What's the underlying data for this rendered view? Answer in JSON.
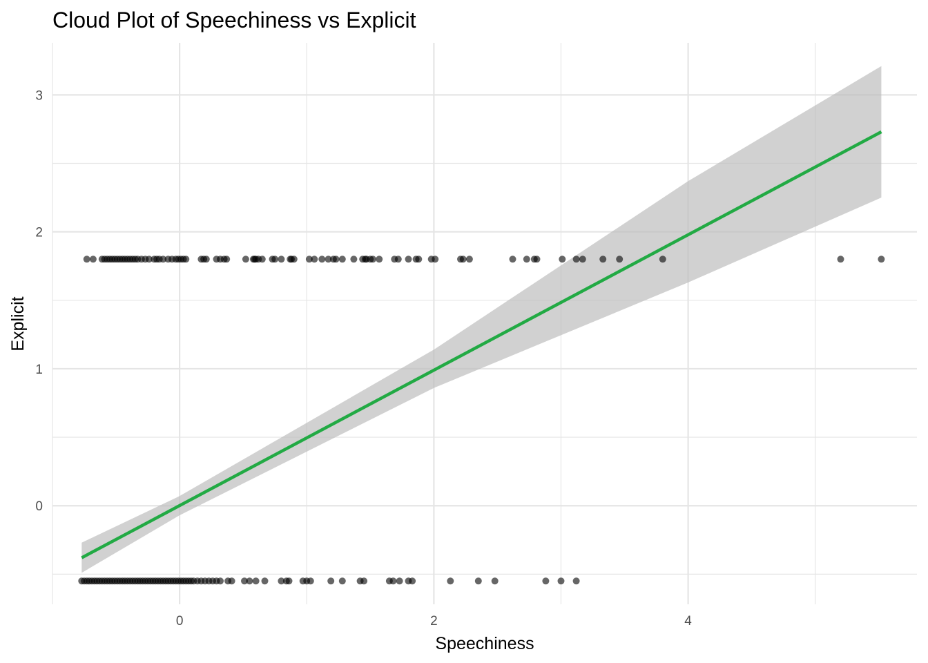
{
  "chart_data": {
    "type": "scatter",
    "title": "Cloud Plot of Speechiness vs Explicit",
    "xlabel": "Speechiness",
    "ylabel": "Explicit",
    "xlim": [
      -1.0,
      5.8
    ],
    "ylim": [
      -0.72,
      3.38
    ],
    "x_ticks": [
      0,
      2,
      4
    ],
    "y_ticks": [
      0,
      1,
      2,
      3
    ],
    "grid": true,
    "legend": "none",
    "colors": {
      "points": "#000000",
      "trend_line": "#22aa44",
      "confidence_band": "#bdbdbd",
      "grid": "#e5e5e5"
    },
    "points": {
      "series": [
        {
          "y": 1.8,
          "x": [
            -0.73,
            -0.68,
            -0.61,
            -0.59,
            -0.57,
            -0.55,
            -0.53,
            -0.51,
            -0.49,
            -0.47,
            -0.45,
            -0.43,
            -0.41,
            -0.39,
            -0.37,
            -0.35,
            -0.33,
            -0.3,
            -0.27,
            -0.24,
            -0.2,
            -0.18,
            -0.16,
            -0.13,
            -0.09,
            -0.06,
            -0.03,
            -0.01,
            0.01,
            0.03,
            0.05,
            0.17,
            0.19,
            0.21,
            0.29,
            0.32,
            0.35,
            0.37,
            0.52,
            0.58,
            0.59,
            0.6,
            0.62,
            0.65,
            0.73,
            0.75,
            0.8,
            0.87,
            0.88,
            0.9,
            1.02,
            1.06,
            1.12,
            1.17,
            1.21,
            1.23,
            1.28,
            1.37,
            1.44,
            1.46,
            1.47,
            1.5,
            1.52,
            1.57,
            1.69,
            1.72,
            1.8,
            1.86,
            1.88,
            1.98,
            2.01,
            2.21,
            2.23,
            2.28,
            2.62,
            2.73,
            2.79,
            2.81,
            3.01,
            3.12,
            3.17,
            3.33,
            3.46,
            3.8,
            5.2,
            5.52
          ]
        },
        {
          "y": -0.55,
          "x": [
            -0.77,
            -0.75,
            -0.73,
            -0.71,
            -0.69,
            -0.67,
            -0.65,
            -0.63,
            -0.61,
            -0.59,
            -0.57,
            -0.55,
            -0.53,
            -0.51,
            -0.49,
            -0.47,
            -0.45,
            -0.43,
            -0.41,
            -0.39,
            -0.37,
            -0.35,
            -0.33,
            -0.31,
            -0.29,
            -0.27,
            -0.25,
            -0.23,
            -0.21,
            -0.19,
            -0.17,
            -0.15,
            -0.13,
            -0.11,
            -0.09,
            -0.07,
            -0.05,
            -0.03,
            -0.01,
            0.01,
            0.03,
            0.05,
            0.07,
            0.09,
            0.11,
            0.14,
            0.17,
            0.2,
            0.23,
            0.26,
            0.29,
            0.32,
            0.38,
            0.41,
            0.51,
            0.55,
            0.6,
            0.67,
            0.8,
            0.84,
            0.86,
            0.97,
            1.0,
            1.03,
            1.19,
            1.28,
            1.42,
            1.45,
            1.65,
            1.68,
            1.73,
            1.8,
            1.83,
            2.13,
            2.35,
            2.48,
            2.88,
            3.0,
            3.12
          ]
        }
      ]
    },
    "trend_line": {
      "x": [
        -0.77,
        5.52
      ],
      "y": [
        -0.38,
        2.73
      ]
    },
    "confidence_band": {
      "x": [
        -0.77,
        0.0,
        2.0,
        4.0,
        5.52
      ],
      "upper": [
        -0.27,
        0.07,
        1.14,
        2.37,
        3.21
      ],
      "lower": [
        -0.49,
        -0.07,
        0.86,
        1.63,
        2.25
      ]
    }
  }
}
